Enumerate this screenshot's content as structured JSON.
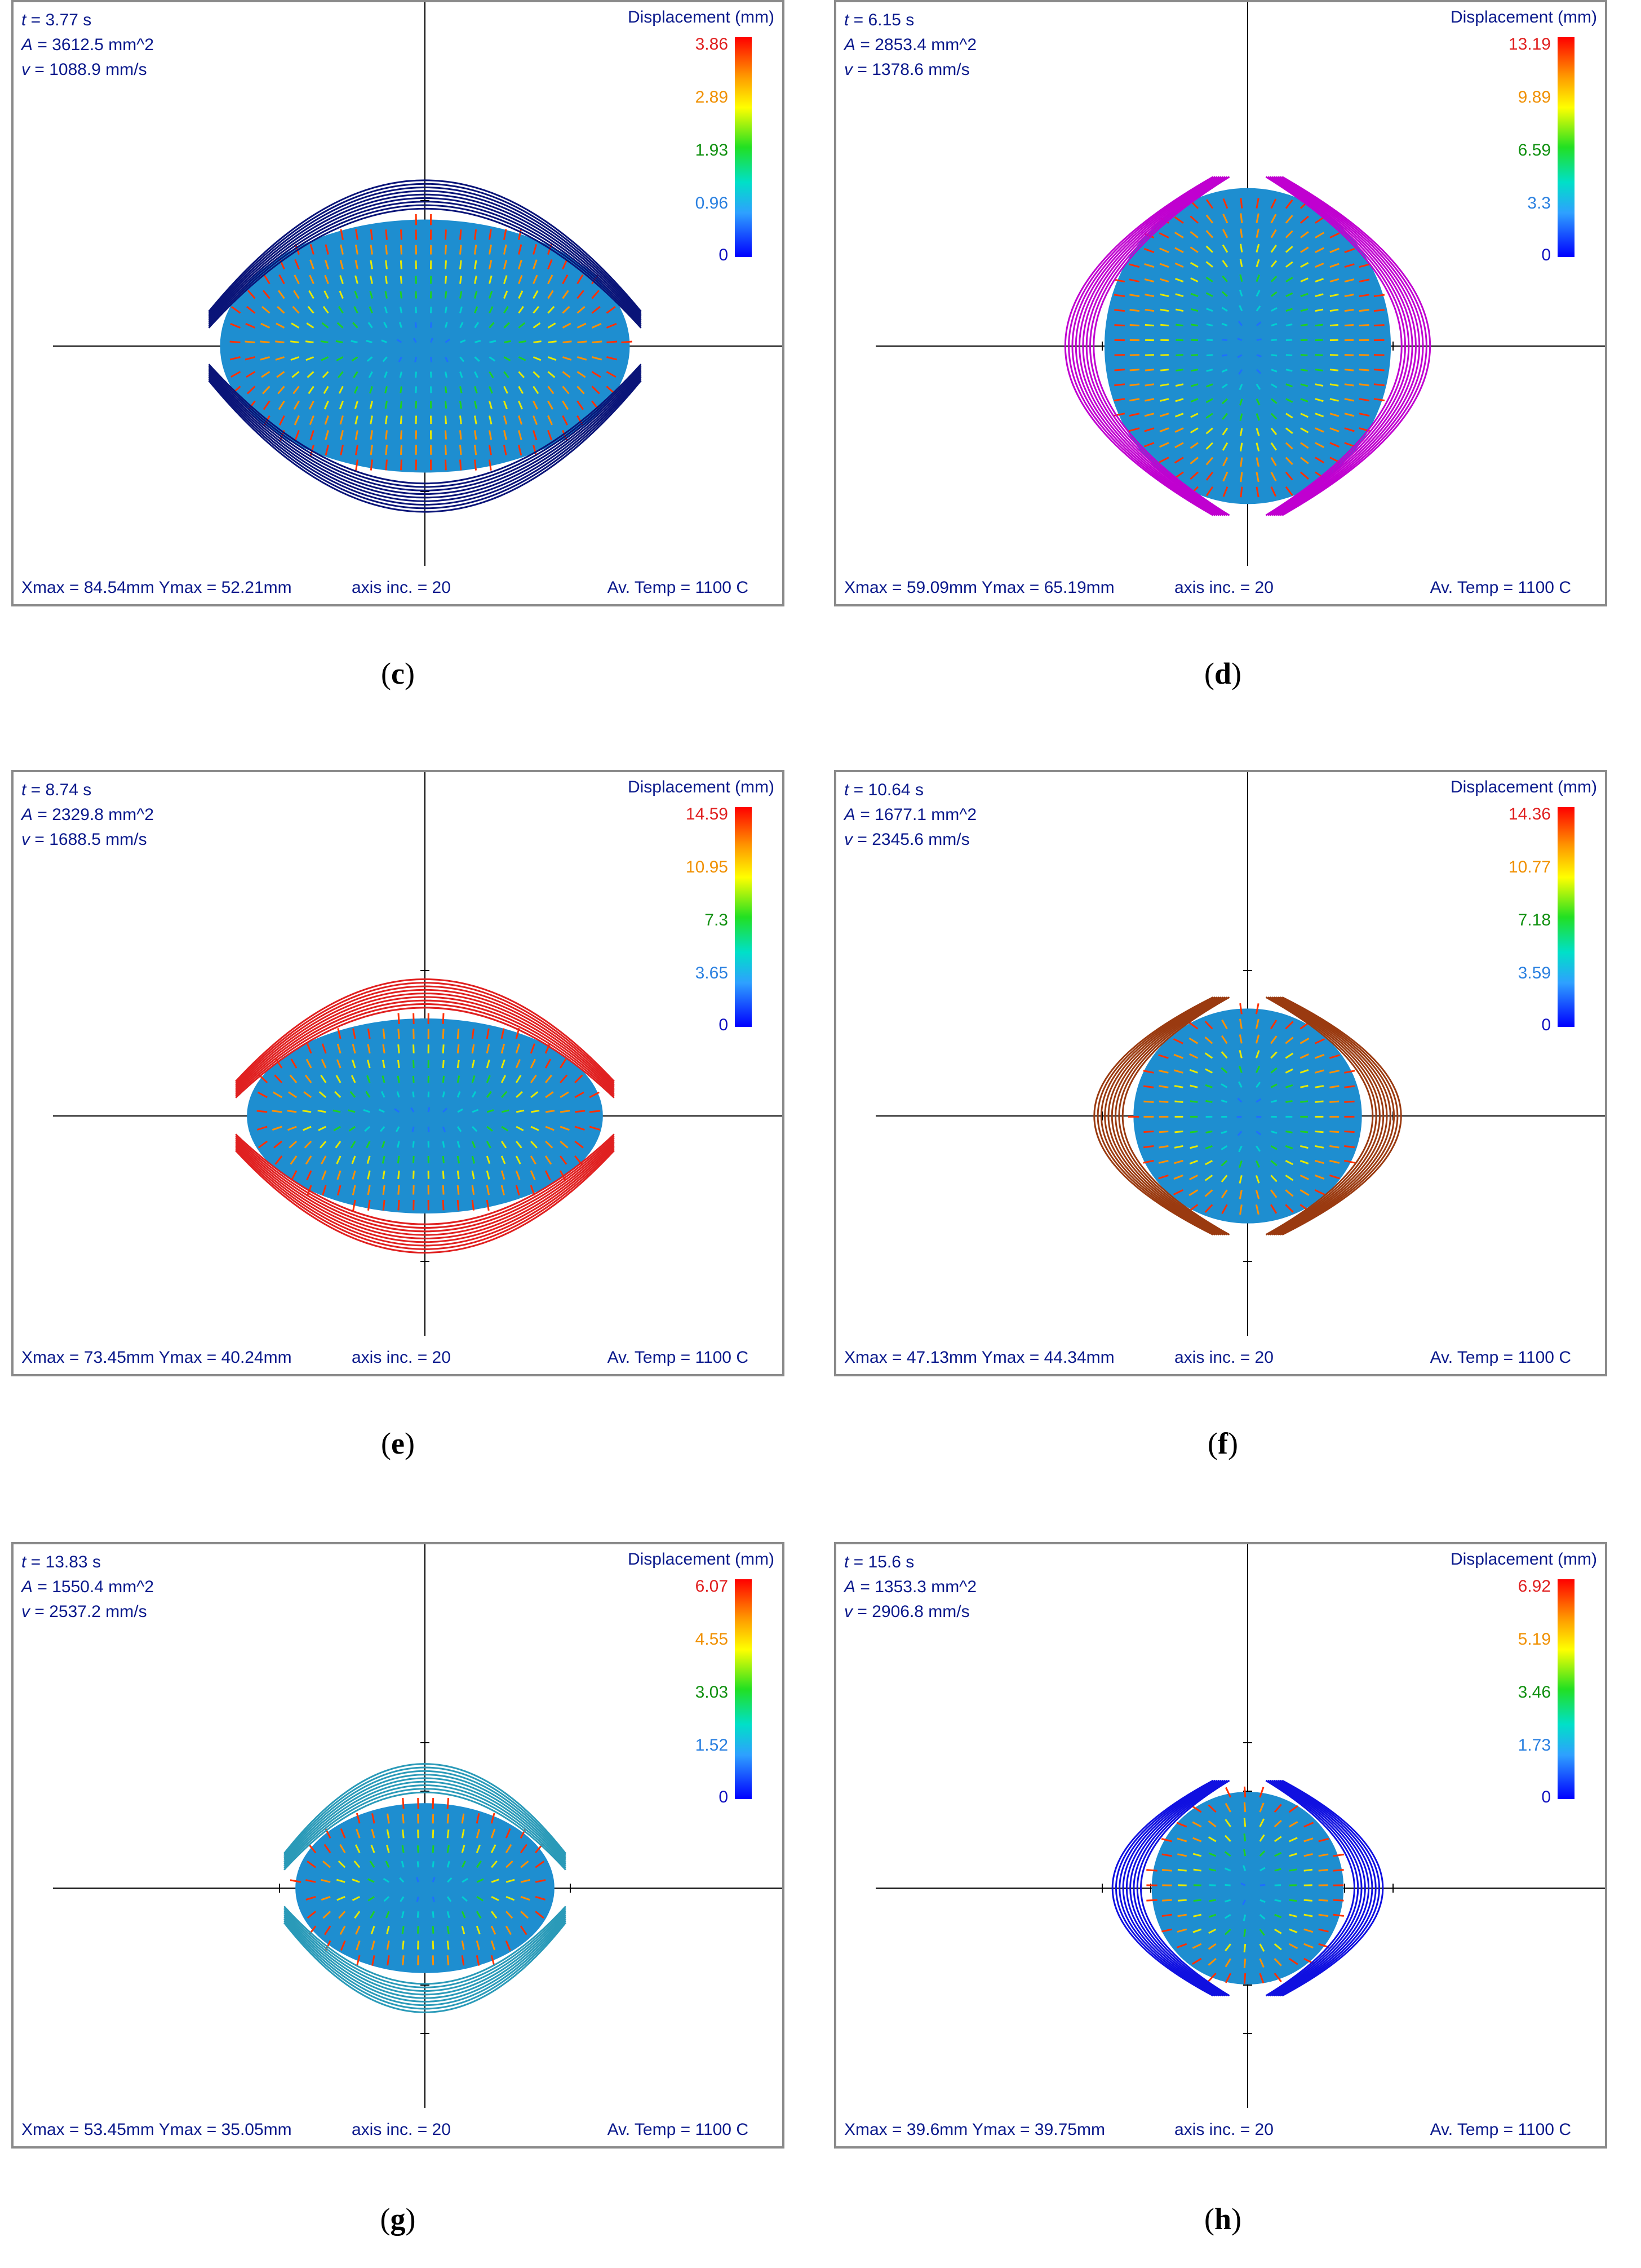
{
  "legend_title": "Displacement (mm)",
  "colors": {
    "text": "#0b1a8c",
    "frame": "#8a8a8a",
    "fill": "#1e8ed0"
  },
  "panels": [
    {
      "id": "c",
      "caption": "c",
      "t": "3.77 s",
      "A": "3612.5 mm^2",
      "v": "1088.9 mm/s",
      "scale": [
        "3.86",
        "2.89",
        "1.93",
        "0.96",
        "0"
      ],
      "footer_left": "Xmax = 84.54mm  Ymax = 52.21mm",
      "footer_mid": "axis inc. = 20",
      "footer_right": "Av. Temp = 1100 C",
      "line_color": "#0a1478",
      "orientation": "horizontal",
      "x_extent_mm": 84.54,
      "y_extent_mm": 52.21
    },
    {
      "id": "d",
      "caption": "d",
      "t": "6.15 s",
      "A": "2853.4 mm^2",
      "v": "1378.6 mm/s",
      "scale": [
        "13.19",
        "9.89",
        "6.59",
        "3.3",
        "0"
      ],
      "footer_left": "Xmax = 59.09mm  Ymax = 65.19mm",
      "footer_mid": "axis inc. = 20",
      "footer_right": "Av. Temp = 1100 C",
      "line_color": "#c000d0",
      "orientation": "vertical",
      "x_extent_mm": 59.09,
      "y_extent_mm": 65.19
    },
    {
      "id": "e",
      "caption": "e",
      "t": "8.74 s",
      "A": "2329.8 mm^2",
      "v": "1688.5 mm/s",
      "scale": [
        "14.59",
        "10.95",
        "7.3",
        "3.65",
        "0"
      ],
      "footer_left": "Xmax = 73.45mm  Ymax = 40.24mm",
      "footer_mid": "axis inc. = 20",
      "footer_right": "Av. Temp = 1100 C",
      "line_color": "#e02020",
      "orientation": "horizontal",
      "x_extent_mm": 73.45,
      "y_extent_mm": 40.24
    },
    {
      "id": "f",
      "caption": "f",
      "t": "10.64 s",
      "A": "1677.1 mm^2",
      "v": "2345.6 mm/s",
      "scale": [
        "14.36",
        "10.77",
        "7.18",
        "3.59",
        "0"
      ],
      "footer_left": "Xmax = 47.13mm  Ymax = 44.34mm",
      "footer_mid": "axis inc. = 20",
      "footer_right": "Av. Temp = 1100 C",
      "line_color": "#9a3a10",
      "orientation": "vertical",
      "x_extent_mm": 47.13,
      "y_extent_mm": 44.34
    },
    {
      "id": "g",
      "caption": "g",
      "t": "13.83 s",
      "A": "1550.4 mm^2",
      "v": "2537.2 mm/s",
      "scale": [
        "6.07",
        "4.55",
        "3.03",
        "1.52",
        "0"
      ],
      "footer_left": "Xmax = 53.45mm  Ymax = 35.05mm",
      "footer_mid": "axis inc. = 20",
      "footer_right": "Av. Temp = 1100 C",
      "line_color": "#2a9ab8",
      "orientation": "horizontal",
      "x_extent_mm": 53.45,
      "y_extent_mm": 35.05
    },
    {
      "id": "h",
      "caption": "h",
      "t": "15.6 s",
      "A": "1353.3 mm^2",
      "v": "2906.8 mm/s",
      "scale": [
        "6.92",
        "5.19",
        "3.46",
        "1.73",
        "0"
      ],
      "footer_left": "Xmax = 39.6mm  Ymax = 39.75mm",
      "footer_mid": "axis inc. = 20",
      "footer_right": "Av. Temp = 1100 C",
      "line_color": "#1010e0",
      "orientation": "vertical",
      "x_extent_mm": 39.6,
      "y_extent_mm": 39.75
    }
  ]
}
